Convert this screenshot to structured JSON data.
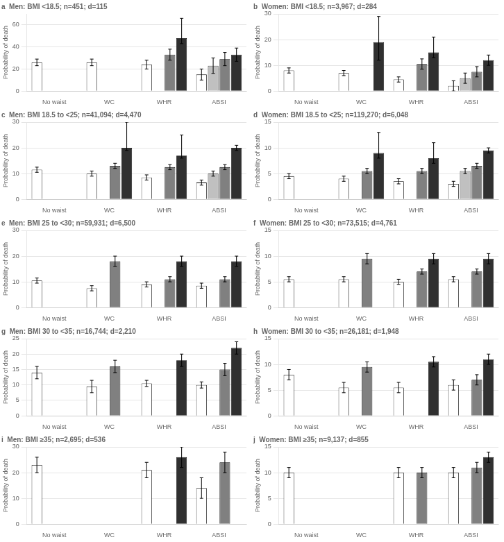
{
  "chart_data": [
    {
      "type": "bar",
      "title": "a  Men: BMI <18.5; n=451; d=115",
      "ylabel": "Probability of death",
      "categories": [
        "No waist",
        "WC",
        "WHR",
        "ABSI"
      ],
      "series": [
        {
          "color": "white",
          "values": [
            26,
            26,
            24,
            15
          ],
          "errors": [
            [
              3,
              3
            ],
            [
              3,
              3
            ],
            [
              4,
              4
            ],
            [
              5,
              5
            ]
          ]
        },
        {
          "color": "#c0c0c0",
          "values": [
            null,
            null,
            null,
            23
          ],
          "errors": [
            null,
            null,
            null,
            [
              7,
              7
            ]
          ]
        },
        {
          "color": "#808080",
          "values": [
            null,
            null,
            33,
            29
          ],
          "errors": [
            null,
            null,
            [
              5,
              5
            ],
            [
              6,
              6
            ]
          ]
        },
        {
          "color": "#303030",
          "values": [
            null,
            null,
            48,
            33
          ],
          "errors": [
            null,
            null,
            [
              5,
              18
            ],
            [
              6,
              6
            ]
          ]
        }
      ],
      "ylim": [
        0,
        70
      ],
      "yticks": [
        0,
        20,
        40,
        60
      ],
      "grid": "y"
    },
    {
      "type": "bar",
      "title": "b  Women: BMI <18.5; n=3,967; d=284",
      "ylabel": "Probability of death",
      "categories": [
        "No waist",
        "WC",
        "WHR",
        "ABSI"
      ],
      "series": [
        {
          "color": "white",
          "values": [
            8,
            7,
            4.5,
            2
          ],
          "errors": [
            [
              1,
              1
            ],
            [
              1,
              1
            ],
            [
              1,
              1
            ],
            [
              2,
              2
            ]
          ]
        },
        {
          "color": "#c0c0c0",
          "values": [
            null,
            null,
            null,
            5
          ],
          "errors": [
            null,
            null,
            null,
            [
              2,
              2
            ]
          ]
        },
        {
          "color": "#808080",
          "values": [
            null,
            null,
            10.5,
            7.5
          ],
          "errors": [
            null,
            null,
            [
              2,
              2
            ],
            [
              2,
              2
            ]
          ]
        },
        {
          "color": "#303030",
          "values": [
            null,
            19,
            15,
            12
          ],
          "errors": [
            null,
            [
              7,
              10
            ],
            [
              2,
              6
            ],
            [
              2,
              2
            ]
          ]
        }
      ],
      "ylim": [
        0,
        30
      ],
      "yticks": [
        0,
        10,
        20,
        30
      ],
      "grid": "y"
    },
    {
      "type": "bar",
      "title": "c  Men: BMI 18.5 to <25; n=41,094; d=4,470",
      "ylabel": "Probability of death",
      "categories": [
        "No waist",
        "WC",
        "WHR",
        "ABSI"
      ],
      "series": [
        {
          "color": "white",
          "values": [
            11.5,
            10,
            8.5,
            6.5
          ],
          "errors": [
            [
              1,
              1
            ],
            [
              1,
              1
            ],
            [
              1,
              1
            ],
            [
              1,
              1
            ]
          ]
        },
        {
          "color": "#c0c0c0",
          "values": [
            null,
            null,
            null,
            10
          ],
          "errors": [
            null,
            null,
            null,
            [
              1,
              1
            ]
          ]
        },
        {
          "color": "#808080",
          "values": [
            null,
            13,
            12.5,
            12.5
          ],
          "errors": [
            null,
            [
              1,
              1
            ],
            [
              1,
              1
            ],
            [
              1,
              1
            ]
          ]
        },
        {
          "color": "#303030",
          "values": [
            null,
            20,
            17,
            20
          ],
          "errors": [
            null,
            [
              1,
              10
            ],
            [
              1,
              8
            ],
            [
              1,
              1
            ]
          ]
        }
      ],
      "ylim": [
        0,
        30
      ],
      "yticks": [
        0,
        10,
        20,
        30
      ],
      "grid": "y"
    },
    {
      "type": "bar",
      "title": "d  Women: BMI 18.5 to <25; n=119,270; d=6,048",
      "ylabel": "Probability of death",
      "categories": [
        "No waist",
        "WC",
        "WHR",
        "ABSI"
      ],
      "series": [
        {
          "color": "white",
          "values": [
            4.5,
            4,
            3.5,
            3
          ],
          "errors": [
            [
              0.5,
              0.5
            ],
            [
              0.5,
              0.5
            ],
            [
              0.5,
              0.5
            ],
            [
              0.5,
              0.5
            ]
          ]
        },
        {
          "color": "#c0c0c0",
          "values": [
            null,
            null,
            null,
            5.5
          ],
          "errors": [
            null,
            null,
            null,
            [
              0.5,
              0.5
            ]
          ]
        },
        {
          "color": "#808080",
          "values": [
            null,
            5.5,
            5.5,
            6.5
          ],
          "errors": [
            null,
            [
              0.5,
              0.5
            ],
            [
              0.5,
              0.5
            ],
            [
              0.5,
              0.5
            ]
          ]
        },
        {
          "color": "#303030",
          "values": [
            null,
            9,
            8,
            9.5
          ],
          "errors": [
            null,
            [
              1,
              4
            ],
            [
              1,
              3
            ],
            [
              0.5,
              0.5
            ]
          ]
        }
      ],
      "ylim": [
        0,
        15
      ],
      "yticks": [
        0,
        5,
        10,
        15
      ],
      "grid": "y"
    },
    {
      "type": "bar",
      "title": "e  Men: BMI 25 to <30; n=59,931; d=6,500",
      "ylabel": "Probability of death",
      "categories": [
        "No waist",
        "WC",
        "WHR",
        "ABSI"
      ],
      "series": [
        {
          "color": "white",
          "values": [
            10.5,
            7.5,
            9,
            8.5
          ],
          "errors": [
            [
              1,
              1
            ],
            [
              1,
              1
            ],
            [
              1,
              1
            ],
            [
              1,
              1
            ]
          ]
        },
        {
          "color": "#c0c0c0",
          "values": [
            null,
            null,
            null,
            null
          ],
          "errors": [
            null,
            null,
            null,
            null
          ]
        },
        {
          "color": "#808080",
          "values": [
            null,
            18,
            11,
            11
          ],
          "errors": [
            null,
            [
              2,
              2
            ],
            [
              1,
              1
            ],
            [
              1,
              1
            ]
          ]
        },
        {
          "color": "#303030",
          "values": [
            null,
            null,
            18,
            18
          ],
          "errors": [
            null,
            null,
            [
              2,
              2
            ],
            [
              2,
              2
            ]
          ]
        }
      ],
      "ylim": [
        0,
        30
      ],
      "yticks": [
        0,
        10,
        20,
        30
      ],
      "grid": "y"
    },
    {
      "type": "bar",
      "title": "f  Women: BMI 25 to <30; n=73,515; d=4,761",
      "ylabel": "Probability of death",
      "categories": [
        "No waist",
        "WC",
        "WHR",
        "ABSI"
      ],
      "series": [
        {
          "color": "white",
          "values": [
            5.5,
            5.5,
            5,
            5.5
          ],
          "errors": [
            [
              0.5,
              0.5
            ],
            [
              0.5,
              0.5
            ],
            [
              0.5,
              0.5
            ],
            [
              0.5,
              0.5
            ]
          ]
        },
        {
          "color": "#c0c0c0",
          "values": [
            null,
            null,
            null,
            null
          ],
          "errors": [
            null,
            null,
            null,
            null
          ]
        },
        {
          "color": "#808080",
          "values": [
            null,
            9.5,
            7,
            7
          ],
          "errors": [
            null,
            [
              1,
              1
            ],
            [
              0.5,
              0.5
            ],
            [
              0.5,
              0.5
            ]
          ]
        },
        {
          "color": "#303030",
          "values": [
            null,
            null,
            9.5,
            9.5
          ],
          "errors": [
            null,
            null,
            [
              1,
              1
            ],
            [
              1,
              1
            ]
          ]
        }
      ],
      "ylim": [
        0,
        15
      ],
      "yticks": [
        0,
        5,
        10,
        15
      ],
      "grid": "y"
    },
    {
      "type": "bar",
      "title": "g  Men: BMI 30 to <35; n=16,744; d=2,210",
      "ylabel": "Probability of death",
      "categories": [
        "No waist",
        "WC",
        "WHR",
        "ABSI"
      ],
      "series": [
        {
          "color": "white",
          "values": [
            14,
            9.5,
            10.5,
            10
          ],
          "errors": [
            [
              2,
              2
            ],
            [
              2,
              2
            ],
            [
              1,
              1
            ],
            [
              1,
              1
            ]
          ]
        },
        {
          "color": "#c0c0c0",
          "values": [
            null,
            null,
            null,
            null
          ],
          "errors": [
            null,
            null,
            null,
            null
          ]
        },
        {
          "color": "#808080",
          "values": [
            null,
            16,
            null,
            15
          ],
          "errors": [
            null,
            [
              2,
              2
            ],
            null,
            [
              2,
              2
            ]
          ]
        },
        {
          "color": "#303030",
          "values": [
            null,
            null,
            18,
            22
          ],
          "errors": [
            null,
            null,
            [
              2,
              2
            ],
            [
              2,
              2
            ]
          ]
        }
      ],
      "ylim": [
        0,
        25
      ],
      "yticks": [
        0,
        5,
        10,
        15,
        20,
        25
      ],
      "grid": "y"
    },
    {
      "type": "bar",
      "title": "h  Women: BMI 30 to <35; n=26,181; d=1,948",
      "ylabel": "Probability of death",
      "categories": [
        "No waist",
        "WC",
        "WHR",
        "ABSI"
      ],
      "series": [
        {
          "color": "white",
          "values": [
            8,
            5.5,
            5.5,
            6
          ],
          "errors": [
            [
              1,
              1
            ],
            [
              1,
              1
            ],
            [
              1,
              1
            ],
            [
              1,
              1
            ]
          ]
        },
        {
          "color": "#c0c0c0",
          "values": [
            null,
            null,
            null,
            null
          ],
          "errors": [
            null,
            null,
            null,
            null
          ]
        },
        {
          "color": "#808080",
          "values": [
            null,
            9.5,
            null,
            7
          ],
          "errors": [
            null,
            [
              1,
              1
            ],
            null,
            [
              1,
              1
            ]
          ]
        },
        {
          "color": "#303030",
          "values": [
            null,
            null,
            10.5,
            11
          ],
          "errors": [
            null,
            null,
            [
              1,
              1
            ],
            [
              1,
              1
            ]
          ]
        }
      ],
      "ylim": [
        0,
        15
      ],
      "yticks": [
        0,
        5,
        10,
        15
      ],
      "grid": "y"
    },
    {
      "type": "bar",
      "title": "i  Men: BMI ≥35; n=2,695; d=536",
      "ylabel": "Probability of death",
      "categories": [
        "No waist",
        "WC",
        "WHR",
        "ABSI"
      ],
      "series": [
        {
          "color": "white",
          "values": [
            23,
            null,
            21,
            14
          ],
          "errors": [
            [
              3,
              3
            ],
            null,
            [
              3,
              3
            ],
            [
              4,
              4
            ]
          ]
        },
        {
          "color": "#c0c0c0",
          "values": [
            null,
            null,
            null,
            null
          ],
          "errors": [
            null,
            null,
            null,
            null
          ]
        },
        {
          "color": "#808080",
          "values": [
            null,
            null,
            null,
            24
          ],
          "errors": [
            null,
            null,
            null,
            [
              4,
              4
            ]
          ]
        },
        {
          "color": "#303030",
          "values": [
            null,
            null,
            26,
            null
          ],
          "errors": [
            null,
            null,
            [
              4,
              4
            ],
            null
          ]
        }
      ],
      "ylim": [
        0,
        30
      ],
      "yticks": [
        0,
        10,
        20,
        30
      ],
      "grid": "y"
    },
    {
      "type": "bar",
      "title": "j  Women: BMI ≥35; n=9,137; d=855",
      "ylabel": "Probability of death",
      "categories": [
        "No waist",
        "WC",
        "WHR",
        "ABSI"
      ],
      "series": [
        {
          "color": "white",
          "values": [
            10,
            null,
            10,
            10
          ],
          "errors": [
            [
              1,
              1
            ],
            null,
            [
              1,
              1
            ],
            [
              1,
              1
            ]
          ]
        },
        {
          "color": "#c0c0c0",
          "values": [
            null,
            null,
            null,
            null
          ],
          "errors": [
            null,
            null,
            null,
            null
          ]
        },
        {
          "color": "#808080",
          "values": [
            null,
            null,
            10,
            11
          ],
          "errors": [
            null,
            null,
            [
              1,
              1
            ],
            [
              1,
              1
            ]
          ]
        },
        {
          "color": "#303030",
          "values": [
            null,
            null,
            null,
            13
          ],
          "errors": [
            null,
            null,
            null,
            [
              1,
              1
            ]
          ]
        }
      ],
      "ylim": [
        0,
        15
      ],
      "yticks": [
        0,
        5,
        10,
        15
      ],
      "grid": "y"
    }
  ]
}
